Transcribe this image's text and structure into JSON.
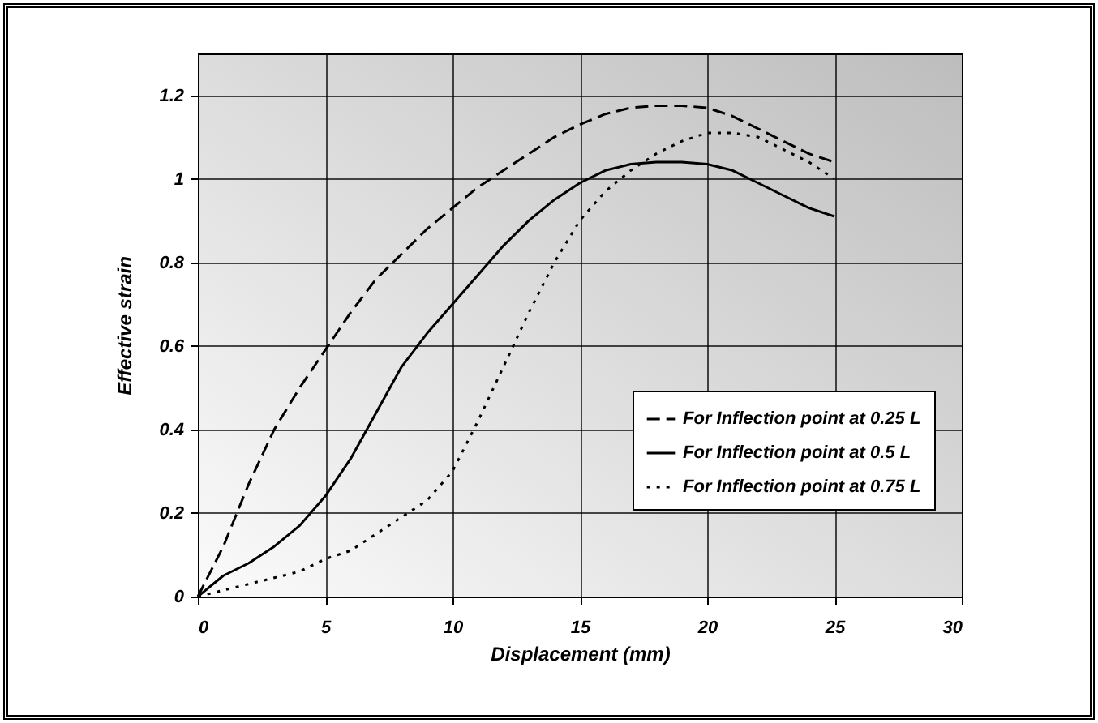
{
  "chart_data": {
    "type": "line",
    "xlabel": "Displacement (mm)",
    "ylabel": "Effective strain",
    "xlim": [
      0,
      30
    ],
    "xticks": [
      0,
      5,
      10,
      15,
      20,
      25,
      30
    ],
    "ylim": [
      0,
      1.3
    ],
    "yticks": [
      0,
      0.2,
      0.4,
      0.6,
      0.8,
      1,
      1.2
    ],
    "grid": true,
    "legend": "bottom right",
    "marker": "none",
    "x": [
      0,
      1,
      2,
      3,
      4,
      5,
      6,
      7,
      8,
      9,
      10,
      11,
      12,
      13,
      14,
      15,
      16,
      17,
      18,
      19,
      20,
      21,
      22,
      23,
      24,
      25
    ],
    "series": [
      {
        "name": "For Inflection point at 0.25 L",
        "color": "#000000",
        "line_style": "dashed",
        "values": [
          0,
          0.12,
          0.27,
          0.4,
          0.5,
          0.59,
          0.68,
          0.76,
          0.82,
          0.88,
          0.93,
          0.98,
          1.02,
          1.06,
          1.1,
          1.13,
          1.155,
          1.17,
          1.175,
          1.175,
          1.17,
          1.15,
          1.12,
          1.09,
          1.06,
          1.04
        ]
      },
      {
        "name": "For Inflection point at 0.5 L",
        "color": "#000000",
        "line_style": "solid",
        "values": [
          0,
          0.05,
          0.08,
          0.12,
          0.17,
          0.24,
          0.33,
          0.44,
          0.55,
          0.63,
          0.7,
          0.77,
          0.84,
          0.9,
          0.95,
          0.99,
          1.02,
          1.035,
          1.04,
          1.04,
          1.035,
          1.02,
          0.99,
          0.96,
          0.93,
          0.91
        ]
      },
      {
        "name": "For Inflection point at 0.75 L",
        "color": "#000000",
        "line_style": "dotted",
        "values": [
          0,
          0.015,
          0.03,
          0.045,
          0.06,
          0.09,
          0.11,
          0.15,
          0.19,
          0.23,
          0.3,
          0.42,
          0.55,
          0.68,
          0.8,
          0.9,
          0.97,
          1.02,
          1.06,
          1.09,
          1.11,
          1.11,
          1.1,
          1.07,
          1.04,
          1.0
        ]
      }
    ]
  }
}
